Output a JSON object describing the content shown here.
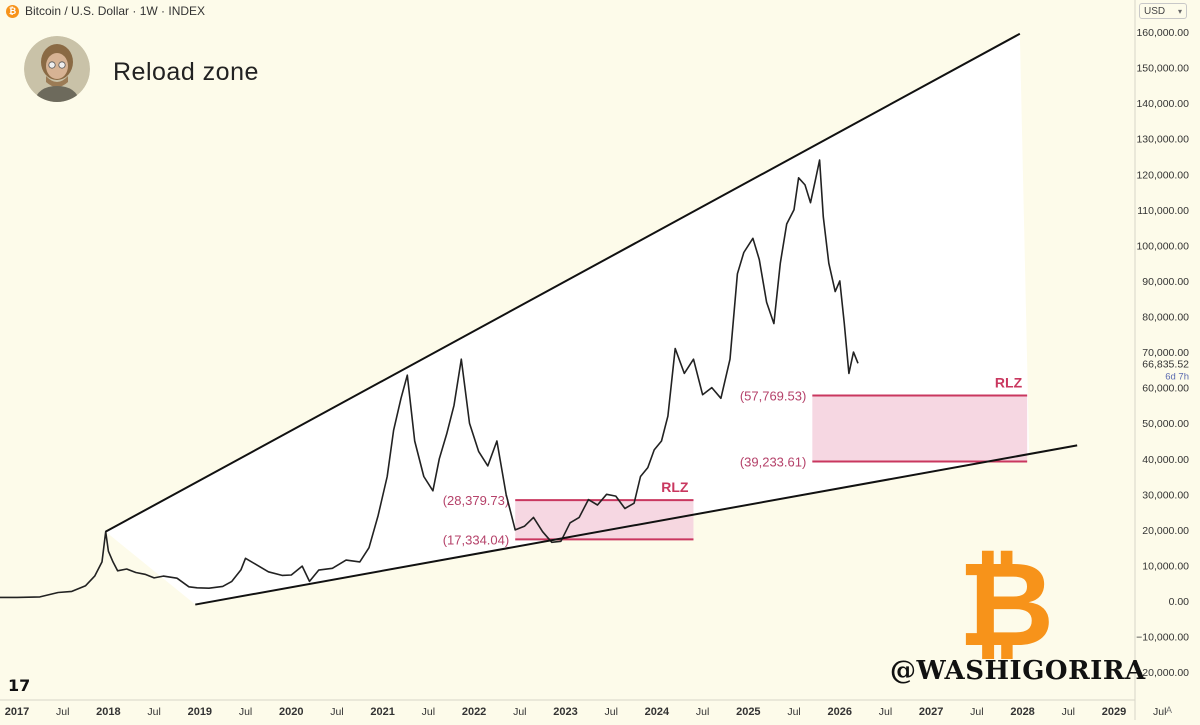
{
  "header": {
    "symbol_icon": "bitcoin-icon",
    "symbol_text": "Bitcoin / U.S. Dollar · 1W · INDEX",
    "currency": "USD"
  },
  "headline": "Reload zone",
  "watermark": "@WASHIGORIRA",
  "btc_logo": "₿",
  "tv_logo": "17",
  "a_label": "A",
  "colors": {
    "background": "#fdfbea",
    "wedge": "#ffffff",
    "zone_fill": "#f5d3df",
    "zone_line": "#c9375f",
    "label_color": "#b5426a",
    "rlz_color": "#c9375f",
    "price_line": "#222222",
    "bitcoin_orange": "#f7931a"
  },
  "chart_data": {
    "type": "line",
    "series": [
      {
        "values_by_year": [
          [
            2017.0,
            1000
          ],
          [
            2017.25,
            1150
          ],
          [
            2017.45,
            2400
          ],
          [
            2017.6,
            2700
          ],
          [
            2017.75,
            4300
          ],
          [
            2017.85,
            7000
          ],
          [
            2017.93,
            11000
          ],
          [
            2017.97,
            19500
          ],
          [
            2018.0,
            14000
          ],
          [
            2018.05,
            11000
          ],
          [
            2018.1,
            8500
          ],
          [
            2018.2,
            9000
          ],
          [
            2018.3,
            8000
          ],
          [
            2018.4,
            7500
          ],
          [
            2018.5,
            6500
          ],
          [
            2018.6,
            7000
          ],
          [
            2018.75,
            6400
          ],
          [
            2018.88,
            4000
          ],
          [
            2018.97,
            3700
          ],
          [
            2019.1,
            3600
          ],
          [
            2019.25,
            4100
          ],
          [
            2019.35,
            5500
          ],
          [
            2019.45,
            8800
          ],
          [
            2019.5,
            12000
          ],
          [
            2019.6,
            10500
          ],
          [
            2019.75,
            8200
          ],
          [
            2019.9,
            7200
          ],
          [
            2020.0,
            7300
          ],
          [
            2020.12,
            9800
          ],
          [
            2020.2,
            5500
          ],
          [
            2020.3,
            8700
          ],
          [
            2020.45,
            9200
          ],
          [
            2020.6,
            11500
          ],
          [
            2020.75,
            11000
          ],
          [
            2020.85,
            15000
          ],
          [
            2020.95,
            24000
          ],
          [
            2021.05,
            35000
          ],
          [
            2021.12,
            48000
          ],
          [
            2021.2,
            57000
          ],
          [
            2021.27,
            63500
          ],
          [
            2021.35,
            45000
          ],
          [
            2021.45,
            35000
          ],
          [
            2021.55,
            31000
          ],
          [
            2021.62,
            40000
          ],
          [
            2021.7,
            47000
          ],
          [
            2021.78,
            55000
          ],
          [
            2021.86,
            68000
          ],
          [
            2021.95,
            50000
          ],
          [
            2022.05,
            42000
          ],
          [
            2022.15,
            38000
          ],
          [
            2022.25,
            45000
          ],
          [
            2022.35,
            30000
          ],
          [
            2022.45,
            20000
          ],
          [
            2022.55,
            21000
          ],
          [
            2022.65,
            23500
          ],
          [
            2022.75,
            19500
          ],
          [
            2022.85,
            16500
          ],
          [
            2022.95,
            16800
          ],
          [
            2023.05,
            22000
          ],
          [
            2023.15,
            23500
          ],
          [
            2023.25,
            28500
          ],
          [
            2023.35,
            27000
          ],
          [
            2023.45,
            30000
          ],
          [
            2023.55,
            29500
          ],
          [
            2023.65,
            26000
          ],
          [
            2023.75,
            27500
          ],
          [
            2023.82,
            35000
          ],
          [
            2023.9,
            37500
          ],
          [
            2023.97,
            42500
          ],
          [
            2024.05,
            45000
          ],
          [
            2024.12,
            52000
          ],
          [
            2024.2,
            71000
          ],
          [
            2024.3,
            64000
          ],
          [
            2024.4,
            68000
          ],
          [
            2024.5,
            58000
          ],
          [
            2024.6,
            60000
          ],
          [
            2024.7,
            57000
          ],
          [
            2024.8,
            68000
          ],
          [
            2024.88,
            92000
          ],
          [
            2024.95,
            98000
          ],
          [
            2025.05,
            102000
          ],
          [
            2025.12,
            96000
          ],
          [
            2025.2,
            84000
          ],
          [
            2025.28,
            78000
          ],
          [
            2025.35,
            95000
          ],
          [
            2025.42,
            106000
          ],
          [
            2025.5,
            110000
          ],
          [
            2025.55,
            119000
          ],
          [
            2025.62,
            117000
          ],
          [
            2025.68,
            112000
          ],
          [
            2025.73,
            118000
          ],
          [
            2025.78,
            124000
          ],
          [
            2025.82,
            108000
          ],
          [
            2025.88,
            95000
          ],
          [
            2025.95,
            87000
          ],
          [
            2026.0,
            90000
          ],
          [
            2026.05,
            78000
          ],
          [
            2026.1,
            64000
          ],
          [
            2026.15,
            70000
          ],
          [
            2026.2,
            66835
          ]
        ]
      }
    ],
    "x_axis_labels": [
      {
        "year": 2017.0,
        "label": "2017"
      },
      {
        "year": 2017.5,
        "label": "Jul"
      },
      {
        "year": 2018.0,
        "label": "2018"
      },
      {
        "year": 2018.5,
        "label": "Jul"
      },
      {
        "year": 2019.0,
        "label": "2019"
      },
      {
        "year": 2019.5,
        "label": "Jul"
      },
      {
        "year": 2020.0,
        "label": "2020"
      },
      {
        "year": 2020.5,
        "label": "Jul"
      },
      {
        "year": 2021.0,
        "label": "2021"
      },
      {
        "year": 2021.5,
        "label": "Jul"
      },
      {
        "year": 2022.0,
        "label": "2022"
      },
      {
        "year": 2022.5,
        "label": "Jul"
      },
      {
        "year": 2023.0,
        "label": "2023"
      },
      {
        "year": 2023.5,
        "label": "Jul"
      },
      {
        "year": 2024.0,
        "label": "2024"
      },
      {
        "year": 2024.5,
        "label": "Jul"
      },
      {
        "year": 2025.0,
        "label": "2025"
      },
      {
        "year": 2025.5,
        "label": "Jul"
      },
      {
        "year": 2026.0,
        "label": "2026"
      },
      {
        "year": 2026.5,
        "label": "Jul"
      },
      {
        "year": 2027.0,
        "label": "2027"
      },
      {
        "year": 2027.5,
        "label": "Jul"
      },
      {
        "year": 2028.0,
        "label": "2028"
      },
      {
        "year": 2028.5,
        "label": "Jul"
      },
      {
        "year": 2029.0,
        "label": "2029"
      },
      {
        "year": 2029.5,
        "label": "Jul"
      }
    ],
    "y_axis_labels": [
      {
        "value": 160000,
        "label": "160,000.00"
      },
      {
        "value": 150000,
        "label": "150,000.00"
      },
      {
        "value": 140000,
        "label": "140,000.00"
      },
      {
        "value": 130000,
        "label": "130,000.00"
      },
      {
        "value": 120000,
        "label": "120,000.00"
      },
      {
        "value": 110000,
        "label": "110,000.00"
      },
      {
        "value": 100000,
        "label": "100,000.00"
      },
      {
        "value": 90000,
        "label": "90,000.00"
      },
      {
        "value": 80000,
        "label": "80,000.00"
      },
      {
        "value": 70000,
        "label": "70,000.00"
      },
      {
        "value": 60000,
        "label": "60,000.00"
      },
      {
        "value": 50000,
        "label": "50,000.00"
      },
      {
        "value": 40000,
        "label": "40,000.00"
      },
      {
        "value": 30000,
        "label": "30,000.00"
      },
      {
        "value": 20000,
        "label": "20,000.00"
      },
      {
        "value": 10000,
        "label": "10,000.00"
      },
      {
        "value": 0,
        "label": "0.00"
      },
      {
        "value": -10000,
        "label": "−10,000.00"
      },
      {
        "value": -20000,
        "label": "−20,000.00"
      }
    ],
    "ylim": [
      -23000,
      168000
    ],
    "xlim": [
      2017.0,
      2029.9
    ],
    "current_price": {
      "value": 66835.52,
      "label": "66,835.52",
      "countdown": "6d 7h"
    },
    "trendlines": {
      "upper": {
        "from": [
          2017.97,
          19500
        ],
        "to": [
          2027.97,
          159500
        ]
      },
      "lower": {
        "from": [
          2018.95,
          -1000
        ],
        "to": [
          2028.05,
          41500
        ]
      }
    },
    "zones": [
      {
        "x_from": 2022.45,
        "x_to": 2024.4,
        "top": 28379.73,
        "bottom": 17334.04,
        "top_label": "(28,379.73)",
        "bottom_label": "(17,334.04)",
        "tag": "RLZ"
      },
      {
        "x_from": 2025.7,
        "x_to": 2028.05,
        "top": 57769.53,
        "bottom": 39233.61,
        "top_label": "(57,769.53)",
        "bottom_label": "(39,233.61)",
        "tag": "RLZ"
      }
    ]
  }
}
